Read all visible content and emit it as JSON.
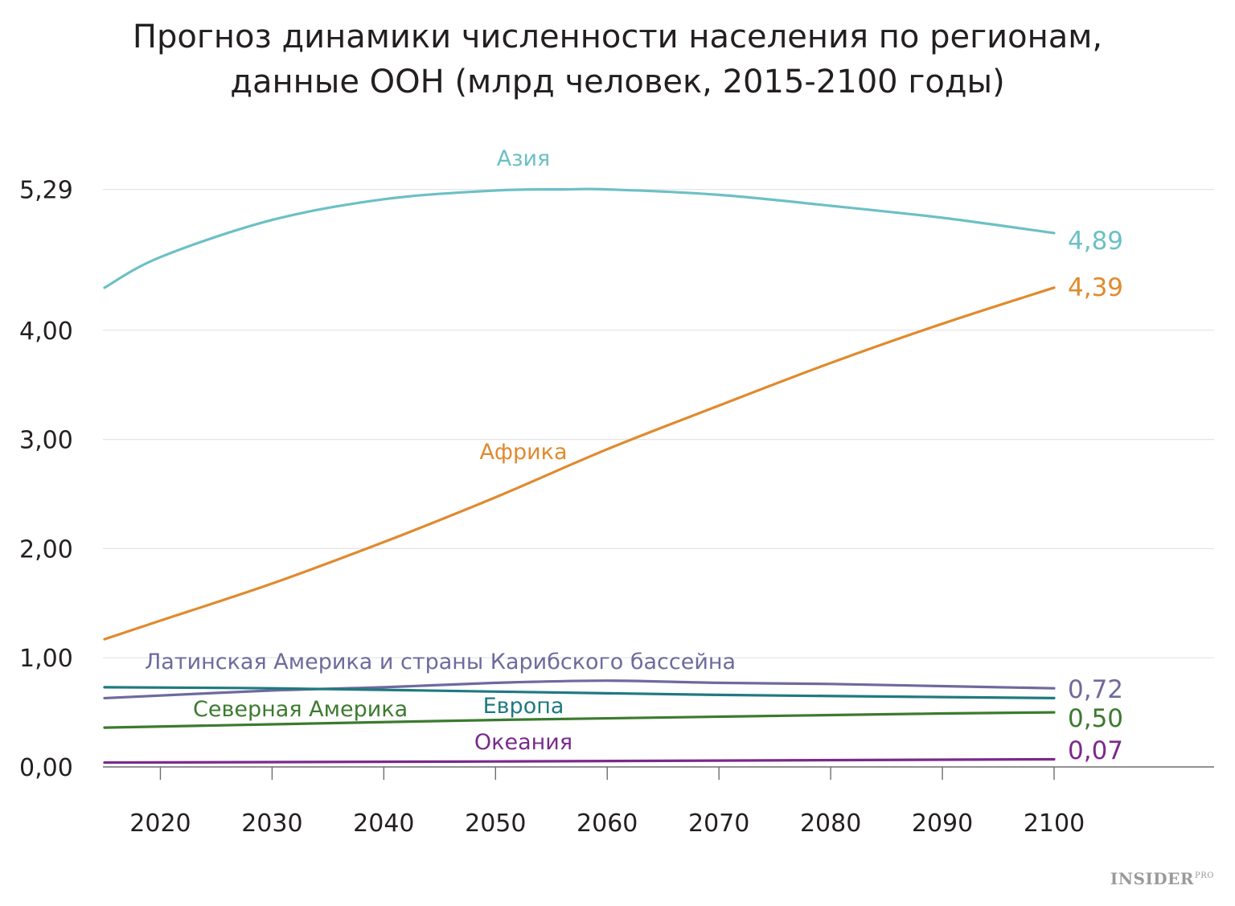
{
  "chart_data": {
    "type": "line",
    "title_lines": [
      "Прогноз динамики численности населения по регионам,",
      "данные ООН (млрд человек, 2015-2100 годы)"
    ],
    "xlabel": "",
    "ylabel": "",
    "xlim": [
      2015,
      2100
    ],
    "ylim": [
      0,
      5.29
    ],
    "grid": true,
    "y_ticks": [
      {
        "value": 0,
        "label": "0,00"
      },
      {
        "value": 1,
        "label": "1,00"
      },
      {
        "value": 2,
        "label": "2,00"
      },
      {
        "value": 3,
        "label": "3,00"
      },
      {
        "value": 4,
        "label": "4,00"
      },
      {
        "value": 5.29,
        "label": "5,29"
      }
    ],
    "x_ticks": [
      2020,
      2030,
      2040,
      2050,
      2060,
      2070,
      2080,
      2090,
      2100
    ],
    "x_tick_labels": [
      "2020",
      "2030",
      "2040",
      "2050",
      "2060",
      "2070",
      "2080",
      "2090",
      "2100"
    ],
    "series": [
      {
        "name": "Азия",
        "color": "#6cc0c5",
        "end_label": "4,89",
        "x": [
          2015,
          2020,
          2030,
          2040,
          2050,
          2056,
          2060,
          2070,
          2080,
          2090,
          2100
        ],
        "y": [
          4.39,
          4.67,
          5.01,
          5.2,
          5.28,
          5.29,
          5.29,
          5.24,
          5.14,
          5.03,
          4.89
        ]
      },
      {
        "name": "Африка",
        "color": "#e08a2e",
        "end_label": "4,39",
        "x": [
          2015,
          2020,
          2030,
          2040,
          2050,
          2060,
          2070,
          2080,
          2090,
          2100
        ],
        "y": [
          1.17,
          1.34,
          1.68,
          2.06,
          2.47,
          2.91,
          3.31,
          3.7,
          4.06,
          4.39
        ]
      },
      {
        "name": "Латинская Америка и страны Карибского бассейна",
        "color": "#6e6a9e",
        "end_label": "0,72",
        "x": [
          2015,
          2030,
          2040,
          2050,
          2060,
          2070,
          2080,
          2090,
          2100
        ],
        "y": [
          0.63,
          0.7,
          0.73,
          0.77,
          0.79,
          0.77,
          0.76,
          0.74,
          0.72
        ]
      },
      {
        "name": "Европа",
        "color": "#1f7a80",
        "end_label": "",
        "x": [
          2015,
          2030,
          2050,
          2070,
          2090,
          2100
        ],
        "y": [
          0.73,
          0.72,
          0.69,
          0.66,
          0.64,
          0.63
        ]
      },
      {
        "name": "Северная Америка",
        "color": "#3c7a2f",
        "end_label": "0,50",
        "x": [
          2015,
          2030,
          2050,
          2070,
          2090,
          2100
        ],
        "y": [
          0.36,
          0.39,
          0.43,
          0.46,
          0.49,
          0.5
        ]
      },
      {
        "name": "Океания",
        "color": "#7a2a8c",
        "end_label": "0,07",
        "x": [
          2015,
          2050,
          2100
        ],
        "y": [
          0.04,
          0.05,
          0.07
        ]
      }
    ]
  },
  "brand": {
    "name": "INSIDER",
    "suffix": "PRO"
  }
}
